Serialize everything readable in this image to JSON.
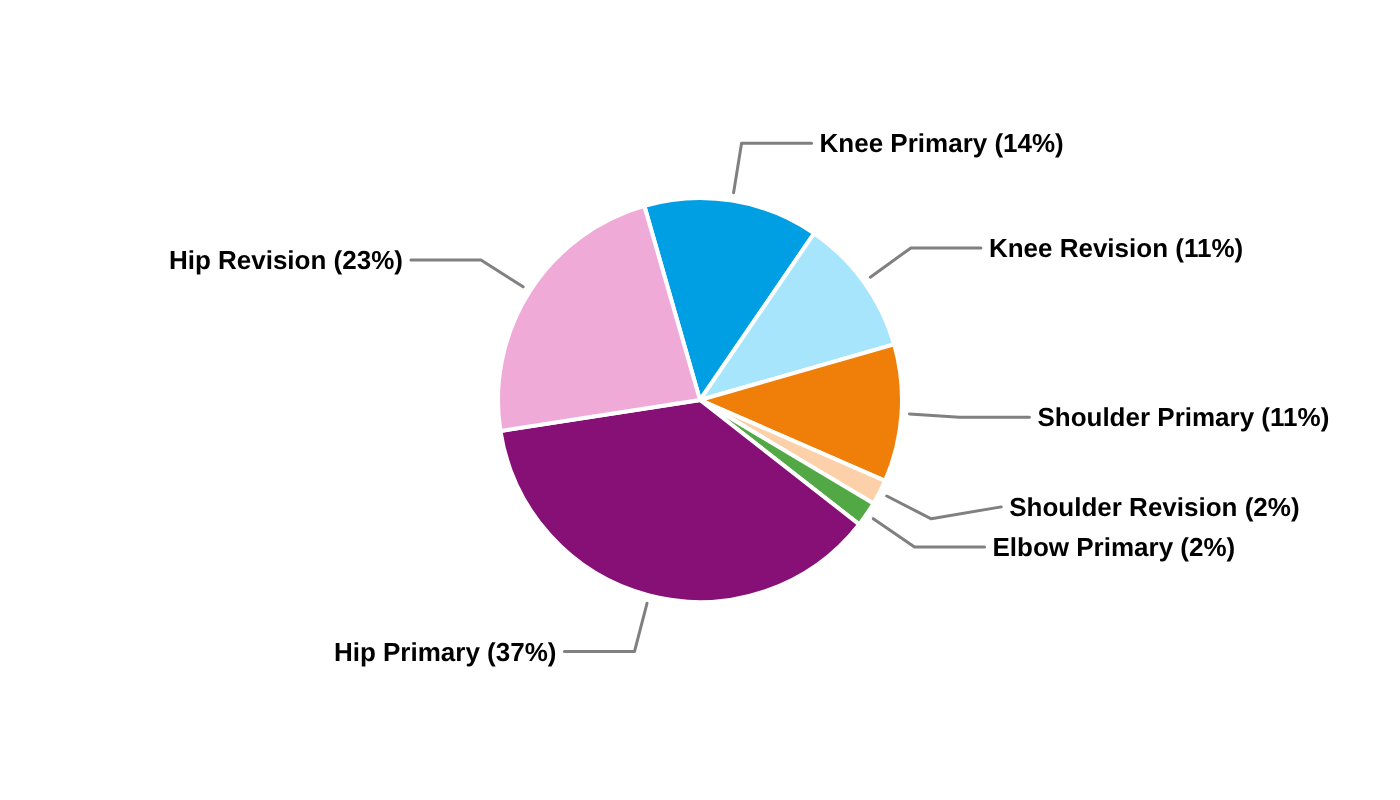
{
  "chart_data": {
    "type": "pie",
    "categories": [
      "Knee Primary",
      "Knee Revision",
      "Shoulder Primary",
      "Shoulder Revision",
      "Elbow Primary",
      "Hip Primary",
      "Hip Revision"
    ],
    "values": [
      14,
      11,
      11,
      2,
      2,
      37,
      23
    ],
    "colors": [
      "#009fe3",
      "#a6e5fb",
      "#f07f09",
      "#fcd0a8",
      "#52a844",
      "#861076",
      "#f0aad8"
    ],
    "value_labels": [
      "(14%)",
      "(11%)",
      "(11%)",
      "(2%)",
      "(2%)",
      "(37%)",
      "(23%)"
    ]
  }
}
